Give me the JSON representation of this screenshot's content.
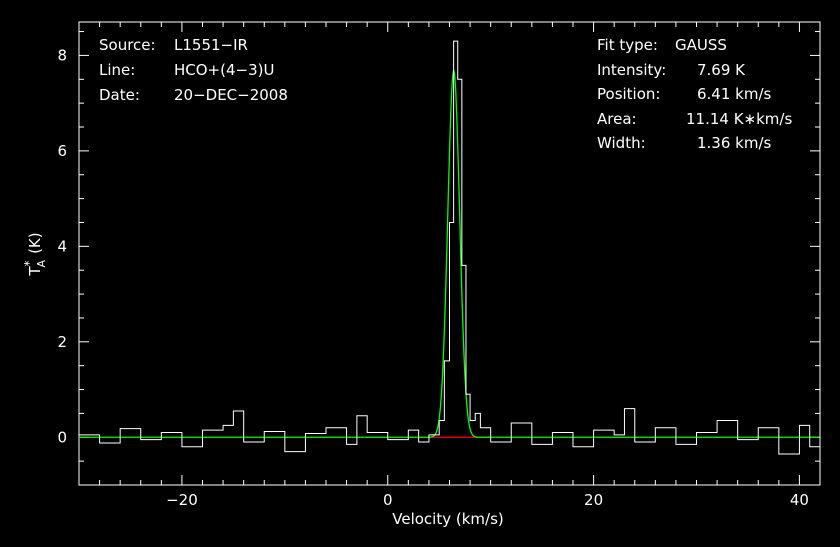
{
  "chart_data": {
    "type": "line",
    "xlabel": "Velocity (km/s)",
    "ylabel_base": "T",
    "ylabel_sup": "*",
    "ylabel_sub": "A",
    "ylabel_unit": "(K)",
    "xlim": [
      -30,
      42
    ],
    "ylim": [
      -1,
      8.7
    ],
    "xticks_major": [
      -20,
      0,
      20,
      40
    ],
    "xticks_labels": [
      "−20",
      "0",
      "20",
      "40"
    ],
    "yticks_major": [
      0,
      2,
      4,
      6,
      8
    ],
    "yticks_labels": [
      "0",
      "2",
      "4",
      "6",
      "8"
    ],
    "colors": {
      "spectrum": "#ffffff",
      "fit": "#00ff00",
      "baseline": "#ff0000",
      "background": "#000000"
    },
    "info": {
      "source_label": "Source:",
      "source_value": "L1551−IR",
      "line_label": "Line:",
      "line_value": "HCO+(4−3)U",
      "date_label": "Date:",
      "date_value": "20−DEC−2008"
    },
    "fit": {
      "type_label": "Fit type:",
      "type_value": "GAUSS",
      "intensity_label": "Intensity:",
      "intensity_value": "7.69 K",
      "position_label": "Position:",
      "position_value": "6.41 km/s",
      "area_label": "Area:",
      "area_value": "11.14 K∗km/s",
      "width_label": "Width:",
      "width_value": "1.36 km/s",
      "amplitude": 7.69,
      "center": 6.41,
      "fwhm": 1.36
    },
    "series": [
      {
        "x": [
          -30,
          -28,
          -26,
          -24,
          -22,
          -20,
          -18,
          -16,
          -15,
          -14,
          -12,
          -10,
          -8,
          -6,
          -4,
          -3,
          -2,
          0,
          2,
          3,
          4,
          5,
          5.5,
          6,
          6.4,
          6.8,
          7.2,
          7.6,
          8,
          8.5,
          9,
          10,
          12,
          14,
          16,
          18,
          20,
          22,
          23,
          24,
          26,
          28,
          30,
          32,
          34,
          36,
          38,
          40,
          41,
          42
        ],
        "y": [
          0.05,
          -0.12,
          0.18,
          -0.05,
          0.1,
          -0.2,
          0.15,
          0.25,
          0.55,
          -0.1,
          0.12,
          -0.3,
          0.08,
          0.2,
          -0.15,
          0.45,
          0.1,
          -0.05,
          0.15,
          -0.1,
          0.05,
          0.35,
          1.6,
          4.5,
          8.3,
          7.5,
          3.6,
          0.9,
          0.35,
          0.5,
          0.2,
          -0.1,
          0.3,
          -0.15,
          0.1,
          -0.2,
          0.15,
          0.05,
          0.6,
          -0.1,
          0.2,
          -0.15,
          0.1,
          0.35,
          -0.05,
          0.2,
          -0.35,
          0.25,
          -0.2,
          0.05
        ]
      }
    ]
  }
}
